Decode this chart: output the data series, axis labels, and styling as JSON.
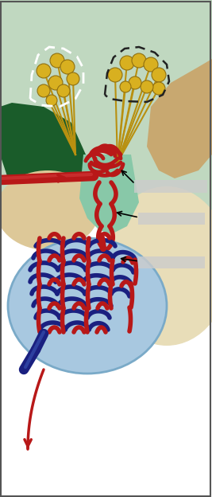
{
  "bg_color": "#ffffff",
  "dark_green": "#1a5c2a",
  "mid_green": "#3a8a4a",
  "light_green": "#6ab878",
  "pale_green": "#a8d4a8",
  "mint_green": "#b8d8c0",
  "tan_dark": "#c8a870",
  "tan_light": "#ddc898",
  "tan_very_light": "#ece8c0",
  "cream": "#f0e8d0",
  "posterior_pituitary": "#e8ddb8",
  "light_blue": "#a8c8e0",
  "light_blue_edge": "#7aaac8",
  "blood_red": "#b81818",
  "dark_blue": "#1a2080",
  "gold_stem": "#b89010",
  "gold_ball": "#d8b020",
  "gold_ball_edge": "#907010",
  "label_gray": "#cccccc",
  "figsize": [
    2.67,
    6.24
  ],
  "dpi": 100
}
